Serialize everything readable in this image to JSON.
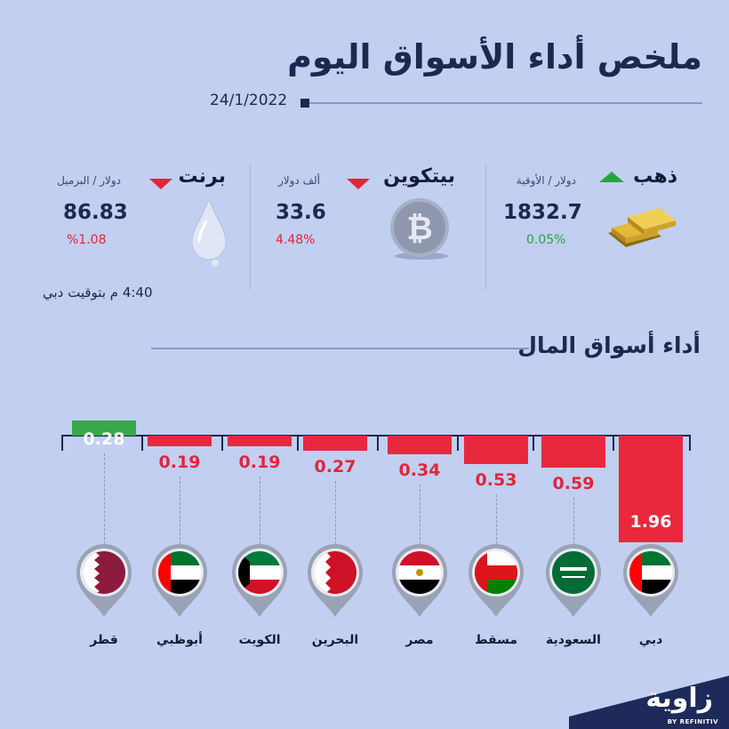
{
  "header": {
    "title": "ملخص أداء الأسواق اليوم",
    "date": "24/1/2022"
  },
  "commodities": [
    {
      "name": "ذهب",
      "unit": "دولار / الأوقية",
      "price": "1832.7",
      "change": "0.05%",
      "direction": "up",
      "icon": "gold-bars-icon"
    },
    {
      "name": "بيتكوين",
      "unit": "ألف دولار",
      "price": "33.6",
      "change": "4.48%",
      "direction": "down",
      "icon": "bitcoin-icon"
    },
    {
      "name": "برنت",
      "unit": "دولار / البرميل",
      "price": "86.83",
      "change": "%1.08",
      "direction": "down",
      "icon": "oil-drop-icon"
    }
  ],
  "time_note": "4:40 م بتوقيت دبي",
  "markets_section": {
    "title": "أداء أسواق المال"
  },
  "chart_data": {
    "type": "bar",
    "categories": [
      "دبي",
      "السعودية",
      "مسقط",
      "مصر",
      "البحرين",
      "الكويت",
      "أبوظبي",
      "قطر"
    ],
    "values": [
      -1.96,
      -0.59,
      -0.53,
      -0.34,
      -0.27,
      -0.19,
      -0.19,
      0.28
    ],
    "value_labels": [
      "1.96",
      "0.59",
      "0.53",
      "0.34",
      "0.27",
      "0.19",
      "0.19",
      "0.28"
    ],
    "colors": {
      "up": "#39a848",
      "down": "#e8283d"
    }
  },
  "brand": {
    "name": "زاوية",
    "sub": "BY REFINITIV"
  }
}
